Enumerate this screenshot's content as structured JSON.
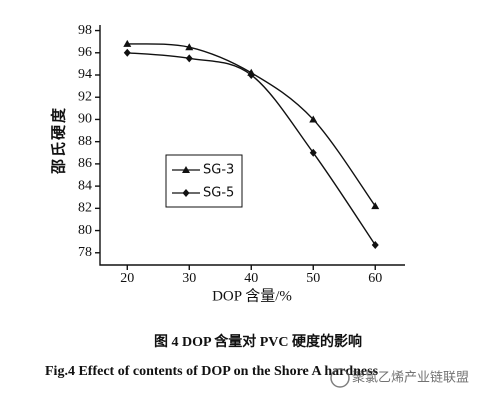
{
  "chart_data": {
    "type": "line",
    "x": [
      20,
      30,
      40,
      50,
      60
    ],
    "series": [
      {
        "name": "SG-3",
        "color": "#111111",
        "marker": "triangle",
        "values": [
          96.8,
          96.5,
          94.2,
          90.0,
          82.2
        ]
      },
      {
        "name": "SG-5",
        "color": "#111111",
        "marker": "diamond",
        "values": [
          96.0,
          95.5,
          94.0,
          87.0,
          78.7
        ]
      }
    ],
    "xlim": [
      15.6,
      64.8
    ],
    "ylim": [
      76.9,
      98.5
    ],
    "xticks": [
      20,
      30,
      40,
      50,
      60
    ],
    "yticks": [
      78,
      80,
      82,
      84,
      86,
      88,
      90,
      92,
      94,
      96,
      98
    ],
    "x_label": "DOP 含量/%",
    "y_label": "邵氏硬度",
    "caption_cn": "图 4 DOP 含量对 PVC 硬度的影响",
    "caption_en": "Fig.4    Effect of contents of DOP on the Shore A hardness",
    "watermark": "聚氯乙烯产业链联盟",
    "grid": false
  }
}
